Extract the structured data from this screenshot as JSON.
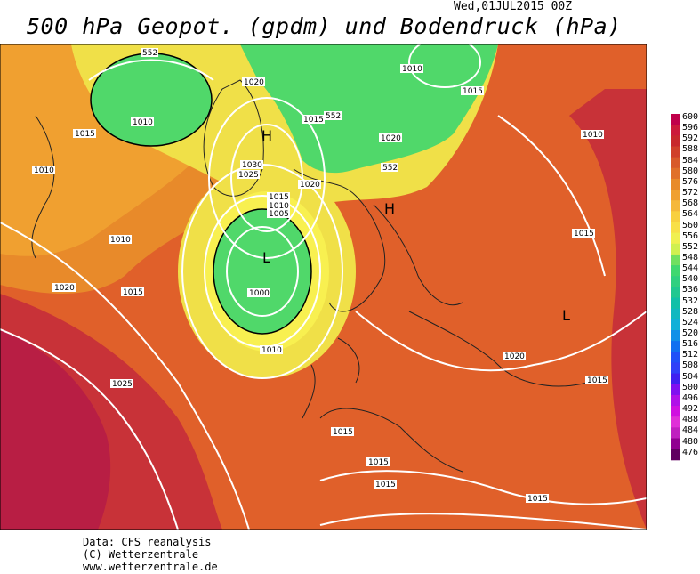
{
  "header": {
    "date": "Wed,01JUL2015 00Z",
    "title": "500 hPa Geopot. (gpdm) und Bodendruck (hPa)"
  },
  "footer": {
    "line1": "Data: CFS reanalysis",
    "line2": "(C) Wetterzentrale",
    "line3": "www.wetterzentrale.de"
  },
  "legend": {
    "ticks": [
      "600",
      "596",
      "592",
      "588",
      "584",
      "580",
      "576",
      "572",
      "568",
      "564",
      "560",
      "556",
      "552",
      "548",
      "544",
      "540",
      "536",
      "532",
      "528",
      "524",
      "520",
      "516",
      "512",
      "508",
      "504",
      "500",
      "496",
      "492",
      "488",
      "484",
      "480",
      "476"
    ],
    "colors": [
      "#c0004a",
      "#cc1a3a",
      "#c8282c",
      "#d0402a",
      "#d85a2a",
      "#e0702a",
      "#e88a2a",
      "#f0a030",
      "#f5b83a",
      "#f8d040",
      "#f8e048",
      "#f0f050",
      "#d0f050",
      "#70e060",
      "#40d870",
      "#30d080",
      "#20c890",
      "#10c0a8",
      "#10b8c0",
      "#10b0d8",
      "#1090e8",
      "#1070f0",
      "#2050f8",
      "#3040f8",
      "#4020f0",
      "#8010f0",
      "#b010e8",
      "#d010e0",
      "#e030d8",
      "#c020c0",
      "#900090",
      "#600060"
    ]
  },
  "map": {
    "isobar_labels": [
      {
        "text": "552"
      },
      {
        "text": "1010"
      },
      {
        "text": "1015"
      },
      {
        "text": "1020"
      },
      {
        "text": "1010"
      },
      {
        "text": "1015"
      },
      {
        "text": "1015"
      },
      {
        "text": "552"
      },
      {
        "text": "1010"
      },
      {
        "text": "1020"
      },
      {
        "text": "1010"
      },
      {
        "text": "1030"
      },
      {
        "text": "1025"
      },
      {
        "text": "1020"
      },
      {
        "text": "552"
      },
      {
        "text": "1015"
      },
      {
        "text": "1010"
      },
      {
        "text": "1005"
      },
      {
        "text": "1010"
      },
      {
        "text": "1020"
      },
      {
        "text": "1015"
      },
      {
        "text": "1000"
      },
      {
        "text": "1010"
      },
      {
        "text": "1015"
      },
      {
        "text": "1020"
      },
      {
        "text": "1015"
      },
      {
        "text": "1025"
      },
      {
        "text": "1015"
      },
      {
        "text": "1015"
      },
      {
        "text": "1015"
      },
      {
        "text": "1015"
      }
    ],
    "pressure_centers": [
      {
        "text": "H"
      },
      {
        "text": "H"
      },
      {
        "text": "L"
      },
      {
        "text": "L"
      }
    ]
  }
}
